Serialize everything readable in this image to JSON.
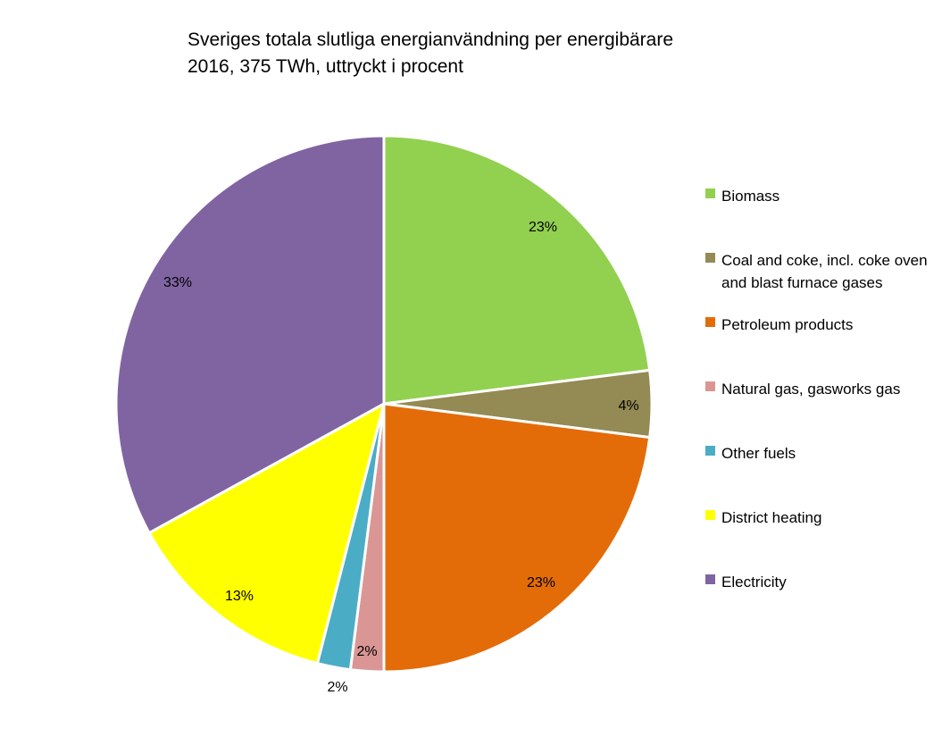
{
  "chart_data": {
    "type": "pie",
    "title": "Sveriges totala slutliga energianvändning per energibärare",
    "subtitle": "2016, 375 TWh, uttryckt i procent",
    "start_angle_deg": 0,
    "direction": "clockwise",
    "slices": [
      {
        "name": "Biomass",
        "value": 23,
        "label": "23%",
        "color": "#92d050"
      },
      {
        "name": "Coal and coke, incl. coke oven and blast furnace gases",
        "value": 4,
        "label": "4%",
        "color": "#948a54"
      },
      {
        "name": "Petroleum products",
        "value": 23,
        "label": "23%",
        "color": "#e36c09"
      },
      {
        "name": "Natural gas, gasworks gas",
        "value": 2,
        "label": "2%",
        "color": "#d99694"
      },
      {
        "name": "Other fuels",
        "value": 2,
        "label": "2%",
        "color": "#4bacc6"
      },
      {
        "name": "District heating",
        "value": 13,
        "label": "13%",
        "color": "#ffff00"
      },
      {
        "name": "Electricity",
        "value": 33,
        "label": "33%",
        "color": "#8064a2"
      }
    ],
    "legend_position": "right"
  }
}
